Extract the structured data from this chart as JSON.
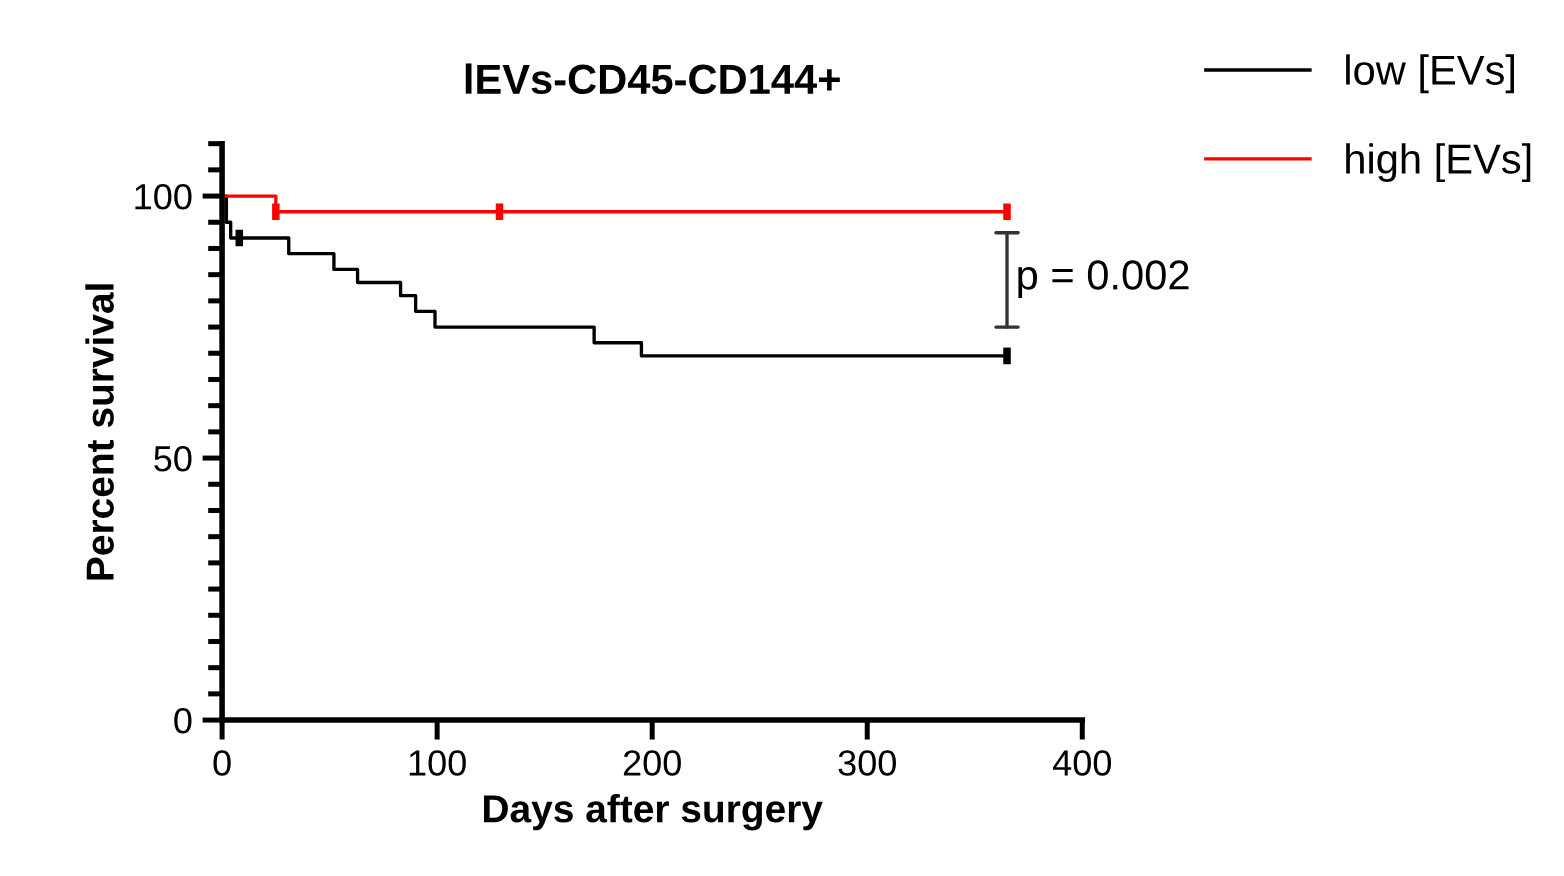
{
  "chart_data": {
    "type": "step",
    "title": "lEVs-CD45-CD144+",
    "xlabel": "Days after surgery",
    "ylabel": "Percent survival",
    "series": [
      {
        "name": "low [EVs]",
        "color": "#000000",
        "x": [
          0,
          2,
          4,
          31,
          52,
          63,
          83,
          90,
          99,
          173,
          195,
          365
        ],
        "values": [
          100,
          95,
          92,
          89,
          86,
          83.5,
          81,
          78,
          75,
          72,
          69.5,
          69.5
        ]
      },
      {
        "name": "high [EVs]",
        "color": "#ff0000",
        "x": [
          0,
          25,
          365
        ],
        "values": [
          100,
          97,
          97
        ]
      },
      {
        "type": "scatter",
        "color": "#000000",
        "x": [
          8,
          365
        ],
        "values": [
          92,
          69.5
        ]
      },
      {
        "type": "scatter",
        "color": "#ff0000",
        "x": [
          25,
          129,
          365
        ],
        "values": [
          97,
          97,
          97
        ]
      }
    ],
    "annotations": [
      "p = 0.002"
    ],
    "xlim": [
      0,
      400
    ],
    "xticks": [
      0,
      100,
      200,
      300,
      400
    ],
    "ylim": [
      0,
      110
    ],
    "yticks": [
      0,
      50,
      100
    ],
    "grid": false,
    "legend": "top right"
  }
}
